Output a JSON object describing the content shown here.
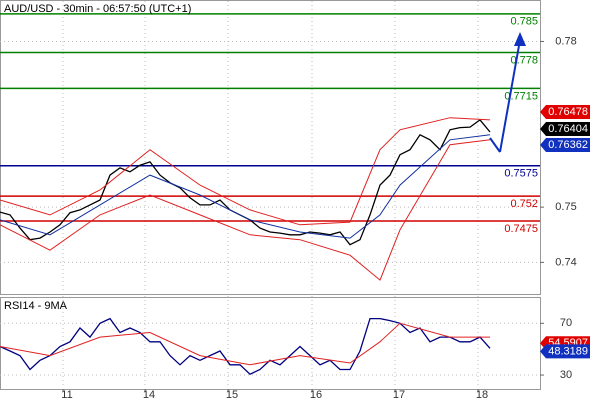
{
  "chart_data": [
    {
      "type": "line",
      "title": "AUD/USD - 30min - 06:57:50 (UTC+1)",
      "xlim": [
        0,
        54
      ],
      "ylim": [
        0.735,
        0.7866
      ],
      "yticks": [
        0.74,
        0.75,
        0.78
      ],
      "xticks": [
        {
          "value": 6.3,
          "label": "11"
        },
        {
          "value": 14.5,
          "label": "14"
        },
        {
          "value": 22.8,
          "label": "15"
        },
        {
          "value": 31.2,
          "label": "16"
        },
        {
          "value": 39.5,
          "label": "17"
        },
        {
          "value": 47.8,
          "label": "18"
        }
      ],
      "grid": true,
      "series": [
        {
          "color": "#000000",
          "x": [
            0,
            1,
            2,
            3,
            4,
            5,
            6,
            7,
            8,
            9,
            10,
            11,
            12,
            13,
            14,
            15,
            16,
            17,
            18,
            19,
            20,
            21,
            22,
            23,
            24,
            25,
            26,
            27,
            28,
            29,
            30,
            31,
            32,
            33,
            34,
            35,
            36,
            37,
            38,
            39,
            40,
            41,
            42,
            43,
            44,
            45,
            46,
            47,
            48,
            49
          ],
          "values": [
            0.7491,
            0.7486,
            0.7462,
            0.7441,
            0.7444,
            0.7455,
            0.7468,
            0.749,
            0.7495,
            0.7504,
            0.7513,
            0.7558,
            0.7571,
            0.7564,
            0.7576,
            0.7582,
            0.7558,
            0.7544,
            0.7535,
            0.7517,
            0.7504,
            0.7504,
            0.7513,
            0.7495,
            0.7486,
            0.7477,
            0.7462,
            0.7455,
            0.7453,
            0.745,
            0.745,
            0.7455,
            0.7453,
            0.745,
            0.7455,
            0.7432,
            0.7441,
            0.7486,
            0.754,
            0.7558,
            0.7595,
            0.7604,
            0.7631,
            0.7622,
            0.7604,
            0.764,
            0.7644,
            0.7645,
            0.7658,
            0.7636
          ]
        },
        {
          "color": "#e02020",
          "x": [
            0,
            5,
            10,
            15,
            20,
            25,
            30,
            35,
            38,
            40,
            45,
            49
          ],
          "values": [
            0.7513,
            0.7486,
            0.7531,
            0.7604,
            0.754,
            0.7495,
            0.7468,
            0.7473,
            0.7604,
            0.764,
            0.7662,
            0.7658
          ]
        },
        {
          "color": "#e02020",
          "x": [
            0,
            5,
            10,
            15,
            20,
            25,
            30,
            35,
            38,
            40,
            45,
            49
          ],
          "values": [
            0.7468,
            0.7422,
            0.7486,
            0.7522,
            0.7486,
            0.745,
            0.7441,
            0.7413,
            0.7368,
            0.7459,
            0.7613,
            0.7622
          ]
        },
        {
          "color": "#1030a0",
          "x": [
            0,
            5,
            10,
            15,
            20,
            25,
            30,
            35,
            38,
            40,
            45,
            49
          ],
          "values": [
            0.7477,
            0.745,
            0.7504,
            0.7558,
            0.7522,
            0.7477,
            0.7455,
            0.7444,
            0.7486,
            0.754,
            0.7622,
            0.7631
          ]
        }
      ],
      "levels": [
        {
          "value": 0.785,
          "color": "#008000"
        },
        {
          "value": 0.778,
          "color": "#008000"
        },
        {
          "value": 0.7715,
          "color": "#008000"
        },
        {
          "value": 0.7575,
          "color": "#000090"
        },
        {
          "value": 0.752,
          "color": "#d00000"
        },
        {
          "value": 0.7475,
          "color": "#d00000"
        }
      ],
      "tags": [
        {
          "value": 0.76478,
          "color": "#e00000"
        },
        {
          "value": 0.76404,
          "color": "#000000"
        },
        {
          "value": 0.76362,
          "color": "#1030c0"
        }
      ]
    },
    {
      "type": "line",
      "title": "RSI14 - 9MA",
      "xlim": [
        0,
        54
      ],
      "ylim": [
        20,
        88
      ],
      "yticks": [
        30,
        70
      ],
      "grid": true,
      "series": [
        {
          "color": "#000080",
          "x": [
            0,
            1,
            2,
            3,
            4,
            5,
            6,
            7,
            8,
            9,
            10,
            11,
            12,
            13,
            14,
            15,
            16,
            17,
            18,
            19,
            20,
            21,
            22,
            23,
            24,
            25,
            26,
            27,
            28,
            29,
            30,
            31,
            32,
            33,
            34,
            35,
            36,
            37,
            38,
            39,
            40,
            41,
            42,
            43,
            44,
            45,
            46,
            47,
            48,
            49
          ],
          "values": [
            52.1,
            48.6,
            45,
            34.3,
            41.4,
            45,
            52.1,
            55.7,
            66.4,
            59.3,
            70,
            73.6,
            62.9,
            66.4,
            62.9,
            55.7,
            55.7,
            45,
            37.9,
            45,
            41.4,
            45,
            48.6,
            37.9,
            37.9,
            30.7,
            34.3,
            41.4,
            37.9,
            45,
            52.1,
            45,
            37.9,
            41.4,
            34.3,
            34.3,
            48.6,
            73.6,
            73.6,
            72.1,
            70,
            62.9,
            66.4,
            55.7,
            59.3,
            59.3,
            55.7,
            55.7,
            59.3,
            50.7
          ]
        },
        {
          "color": "#e02020",
          "x": [
            0,
            5,
            10,
            15,
            20,
            25,
            30,
            35,
            38,
            40,
            45,
            49
          ],
          "values": [
            52.1,
            45,
            59.3,
            62.9,
            45,
            37.9,
            45,
            39.3,
            55.7,
            70,
            59.3,
            59.3
          ]
        }
      ],
      "tags": [
        {
          "value": 54.5907,
          "color": "#e00000"
        },
        {
          "value": 48.3189,
          "color": "#1030c0"
        }
      ]
    }
  ]
}
